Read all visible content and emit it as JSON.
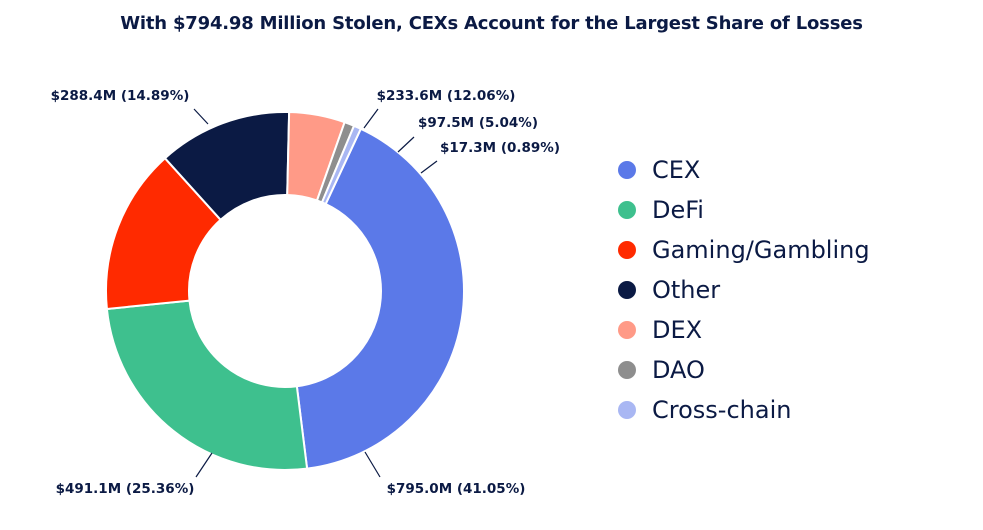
{
  "chart_data": {
    "type": "donut",
    "title": "With $794.98 Million Stolen, CEXs Account for the Largest Share of Losses",
    "series": [
      {
        "name": "CEX",
        "value": 795.0,
        "percent": 41.05,
        "label": "$795.0M (41.05%)",
        "color": "#5b79e8"
      },
      {
        "name": "DeFi",
        "value": 491.1,
        "percent": 25.36,
        "label": "$491.1M (25.36%)",
        "color": "#3ec08e"
      },
      {
        "name": "Gaming/Gambling",
        "value": 288.4,
        "percent": 14.89,
        "label": "$288.4M (14.89%)",
        "color": "#ff2a00"
      },
      {
        "name": "Other",
        "value": 233.6,
        "percent": 12.06,
        "label": "$233.6M (12.06%)",
        "color": "#0b1a44"
      },
      {
        "name": "DEX",
        "value": 97.5,
        "percent": 5.04,
        "label": "$97.5M (5.04%)",
        "color": "#ff9a87"
      },
      {
        "name": "DAO",
        "value": 17.3,
        "percent": 0.89,
        "label": "$17.3M (0.89%)",
        "color": "#8e8e8e"
      },
      {
        "name": "Cross-chain",
        "value": 12.8,
        "percent": 0.66,
        "label": "",
        "color": "#a9b7f3"
      }
    ],
    "legend_position": "right"
  }
}
